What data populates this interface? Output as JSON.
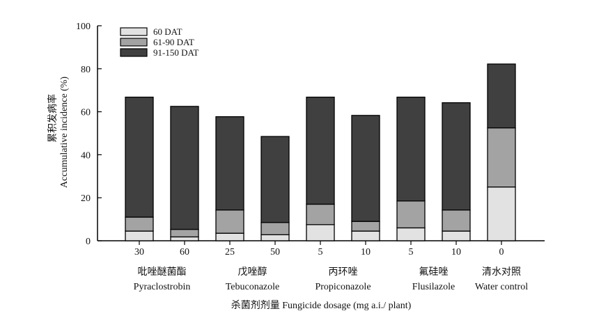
{
  "chart_data": {
    "type": "bar",
    "stacked": true,
    "ylabel_cn": "累积发病率",
    "ylabel": "Accumulative incidence (%)",
    "xlabel": "杀菌剂剂量 Fungicide dosage (mg a.i./ plant)",
    "ylim": [
      0,
      100
    ],
    "yticks": [
      "0",
      "20",
      "40",
      "60",
      "80",
      "100"
    ],
    "categories": [
      "30",
      "60",
      "25",
      "50",
      "5",
      "10",
      "5",
      "10",
      "0"
    ],
    "groups": [
      {
        "cn": "吡唑醚菌酯",
        "en": "Pyraclostrobin",
        "bars": [
          0,
          1
        ]
      },
      {
        "cn": "戊唑醇",
        "en": "Tebuconazole",
        "bars": [
          2,
          3
        ]
      },
      {
        "cn": "丙环唑",
        "en": "Propiconazole",
        "bars": [
          4,
          5
        ]
      },
      {
        "cn": "氟硅唑",
        "en": "Flusilazole",
        "bars": [
          6,
          7
        ]
      },
      {
        "cn": "清水对照",
        "en": "Water control",
        "bars": [
          8
        ]
      }
    ],
    "series": [
      {
        "name": "60 DAT",
        "color": "#e2e2e2",
        "values": [
          4.5,
          1.8,
          3.5,
          2.8,
          7.5,
          4.5,
          6.0,
          4.5,
          25.0
        ]
      },
      {
        "name": "61-90 DAT",
        "color": "#a3a3a3",
        "values": [
          6.5,
          3.5,
          10.8,
          5.7,
          9.5,
          4.5,
          12.5,
          9.8,
          27.5
        ]
      },
      {
        "name": "91-150 DAT",
        "color": "#404040",
        "values": [
          55.8,
          57.2,
          43.4,
          40.0,
          49.8,
          49.3,
          48.3,
          49.9,
          29.7
        ]
      }
    ],
    "legend_position": "top-left"
  }
}
